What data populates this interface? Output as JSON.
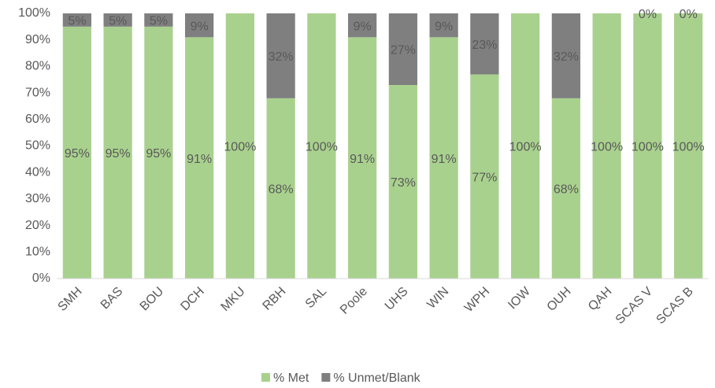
{
  "chart_data": {
    "type": "stacked_bar",
    "categories": [
      "SMH",
      "BAS",
      "BOU",
      "DCH",
      "MKU",
      "RBH",
      "SAL",
      "Poole",
      "UHS",
      "WIN",
      "WPH",
      "IOW",
      "OUH",
      "QAH",
      "SCAS V",
      "SCAS B"
    ],
    "series": [
      {
        "name": "% Met",
        "color": "#a9d18e",
        "values": [
          95,
          95,
          95,
          91,
          100,
          68,
          100,
          91,
          73,
          91,
          77,
          100,
          68,
          100,
          100,
          100
        ],
        "value_labels": [
          "95%",
          "95%",
          "95%",
          "91%",
          "100%",
          "68%",
          "100%",
          "91%",
          "73%",
          "91%",
          "77%",
          "100%",
          "68%",
          "100%",
          "100%",
          "100%"
        ]
      },
      {
        "name": "% Unmet/Blank",
        "color": "#7f7f7f",
        "values": [
          5,
          5,
          5,
          9,
          0,
          32,
          0,
          9,
          27,
          9,
          23,
          0,
          32,
          0,
          0,
          0
        ],
        "value_labels": [
          "5%",
          "5%",
          "5%",
          "9%",
          null,
          "32%",
          null,
          "9%",
          "27%",
          "9%",
          "23%",
          null,
          "32%",
          null,
          "0%",
          "0%"
        ]
      }
    ],
    "ylim": [
      0,
      100
    ],
    "yticks": [
      {
        "value": 0,
        "label": "0%"
      },
      {
        "value": 10,
        "label": "10%"
      },
      {
        "value": 20,
        "label": "20%"
      },
      {
        "value": 30,
        "label": "30%"
      },
      {
        "value": 40,
        "label": "40%"
      },
      {
        "value": 50,
        "label": "50%"
      },
      {
        "value": 60,
        "label": "60%"
      },
      {
        "value": 70,
        "label": "70%"
      },
      {
        "value": 80,
        "label": "80%"
      },
      {
        "value": 90,
        "label": "90%"
      },
      {
        "value": 100,
        "label": "100%"
      }
    ],
    "grid": false,
    "legend": "bottom"
  }
}
